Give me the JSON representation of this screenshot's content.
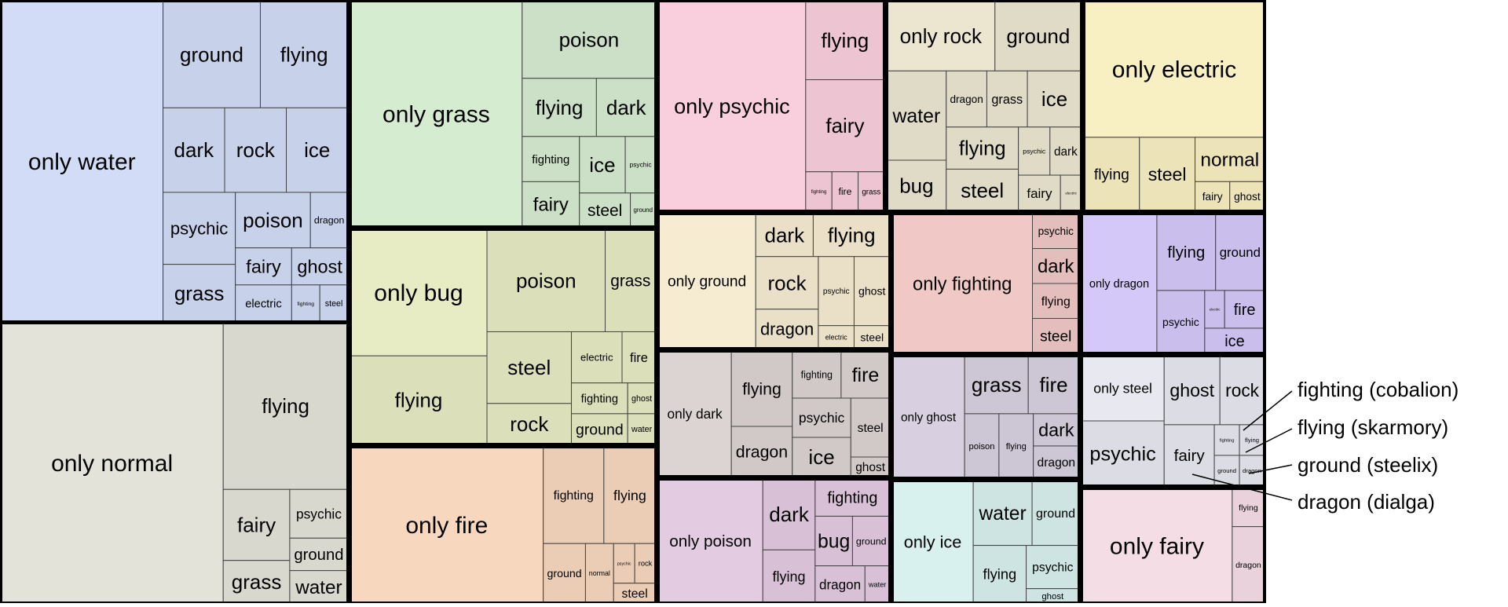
{
  "chart_data": {
    "type": "treemap",
    "title": "",
    "palette": {
      "water": "#d2dcf6",
      "normal": "#e3e3da",
      "grass": "#d6ecd0",
      "bug": "#e7ecc5",
      "fire": "#f7d8be",
      "psychic": "#f9cedd",
      "ground": "#f6ecd2",
      "dark": "#dcd4d2",
      "poison": "#e3cbe2",
      "rock": "#ece6d0",
      "fighting": "#f0c8c6",
      "ghost": "#d8d0e0",
      "ice": "#d8f0ee",
      "electric": "#f8efc2",
      "dragon": "#d4c8f8",
      "steel": "#e8e8f0",
      "fairy": "#f5dde6"
    },
    "groups": [
      {
        "name": "water",
        "label": "only water",
        "pure": 50,
        "secondary": [
          [
            "ground",
            10
          ],
          [
            "flying",
            9
          ],
          [
            "dark",
            5
          ],
          [
            "rock",
            5
          ],
          [
            "ice",
            5
          ],
          [
            "psychic",
            5
          ],
          [
            "grass",
            4
          ],
          [
            "poison",
            4
          ],
          [
            "dragon",
            2
          ],
          [
            "fairy",
            2
          ],
          [
            "electric",
            2
          ],
          [
            "ghost",
            2
          ],
          [
            "fighting",
            1
          ],
          [
            "steel",
            1
          ]
        ]
      },
      {
        "name": "normal",
        "label": "only normal",
        "pure": 66,
        "secondary": [
          [
            "flying",
            22
          ],
          [
            "fairy",
            5
          ],
          [
            "grass",
            3
          ],
          [
            "psychic",
            3
          ],
          [
            "ground",
            2
          ],
          [
            "water",
            2
          ]
        ]
      },
      {
        "name": "grass",
        "label": "only grass",
        "pure": 45,
        "secondary": [
          [
            "poison",
            12
          ],
          [
            "flying",
            5
          ],
          [
            "dark",
            4
          ],
          [
            "fighting",
            3
          ],
          [
            "fairy",
            3
          ],
          [
            "ice",
            3
          ],
          [
            "psychic",
            2
          ],
          [
            "steel",
            2
          ],
          [
            "ground",
            1
          ]
        ]
      },
      {
        "name": "bug",
        "label": "only bug",
        "pure": 20,
        "secondary": [
          [
            "flying",
            14
          ],
          [
            "poison",
            14
          ],
          [
            "grass",
            6
          ],
          [
            "steel",
            7
          ],
          [
            "rock",
            4
          ],
          [
            "electric",
            3
          ],
          [
            "fire",
            2
          ],
          [
            "fighting",
            2
          ],
          [
            "ground",
            2
          ],
          [
            "ghost",
            1
          ],
          [
            "water",
            1
          ]
        ]
      },
      {
        "name": "fire",
        "label": "only fire",
        "pure": 36,
        "secondary": [
          [
            "fighting",
            7
          ],
          [
            "flying",
            6
          ],
          [
            "ground",
            3
          ],
          [
            "normal",
            2
          ],
          [
            "psychic",
            1
          ],
          [
            "rock",
            1
          ],
          [
            "steel",
            1
          ]
        ]
      },
      {
        "name": "psychic",
        "label": "only psychic",
        "pure": 30,
        "secondary": [
          [
            "flying",
            6
          ],
          [
            "fairy",
            7
          ],
          [
            "fighting",
            1
          ],
          [
            "fire",
            1
          ],
          [
            "grass",
            1
          ]
        ]
      },
      {
        "name": "ground",
        "label": "only ground",
        "pure": 16,
        "secondary": [
          [
            "dark",
            3
          ],
          [
            "flying",
            4
          ],
          [
            "rock",
            4
          ],
          [
            "dragon",
            3
          ],
          [
            "psychic",
            3
          ],
          [
            "ghost",
            3
          ],
          [
            "electric",
            1
          ],
          [
            "steel",
            1
          ]
        ]
      },
      {
        "name": "dark",
        "label": "only dark",
        "pure": 12,
        "secondary": [
          [
            "flying",
            6
          ],
          [
            "dragon",
            4
          ],
          [
            "fighting",
            3
          ],
          [
            "fire",
            3
          ],
          [
            "psychic",
            3
          ],
          [
            "ice",
            3
          ],
          [
            "steel",
            3
          ],
          [
            "ghost",
            1
          ]
        ]
      },
      {
        "name": "poison",
        "label": "only poison",
        "pure": 14,
        "secondary": [
          [
            "dark",
            4
          ],
          [
            "flying",
            3
          ],
          [
            "fighting",
            3
          ],
          [
            "bug",
            2
          ],
          [
            "ground",
            2
          ],
          [
            "dragon",
            2
          ],
          [
            "water",
            1
          ]
        ]
      },
      {
        "name": "rock",
        "label": "only rock",
        "pure": 10,
        "secondary": [
          [
            "ground",
            8
          ],
          [
            "water",
            7
          ],
          [
            "bug",
            4
          ],
          [
            "dragon",
            3
          ],
          [
            "grass",
            3
          ],
          [
            "ice",
            4
          ],
          [
            "flying",
            4
          ],
          [
            "steel",
            4
          ],
          [
            "psychic",
            2
          ],
          [
            "dark",
            2
          ],
          [
            "fairy",
            2
          ],
          [
            "electric",
            1
          ]
        ]
      },
      {
        "name": "fighting",
        "label": "only fighting",
        "pure": 24,
        "secondary": [
          [
            "psychic",
            2
          ],
          [
            "dark",
            2
          ],
          [
            "flying",
            2
          ],
          [
            "steel",
            2
          ]
        ]
      },
      {
        "name": "ghost",
        "label": "only ghost",
        "pure": 12,
        "secondary": [
          [
            "grass",
            5
          ],
          [
            "fire",
            4
          ],
          [
            "poison",
            3
          ],
          [
            "flying",
            3
          ],
          [
            "dark",
            2
          ],
          [
            "dragon",
            2
          ]
        ]
      },
      {
        "name": "ice",
        "label": "only ice",
        "pure": 13,
        "secondary": [
          [
            "water",
            5
          ],
          [
            "ground",
            4
          ],
          [
            "flying",
            4
          ],
          [
            "psychic",
            3
          ],
          [
            "ghost",
            1
          ]
        ]
      },
      {
        "name": "electric",
        "label": "only electric",
        "pure": 24,
        "secondary": [
          [
            "flying",
            4
          ],
          [
            "steel",
            4
          ],
          [
            "normal",
            3
          ],
          [
            "fairy",
            1
          ],
          [
            "ghost",
            1
          ]
        ]
      },
      {
        "name": "dragon",
        "label": "only dragon",
        "pure": 14,
        "secondary": [
          [
            "flying",
            6
          ],
          [
            "ground",
            5
          ],
          [
            "psychic",
            4
          ],
          [
            "electric",
            1
          ],
          [
            "fire",
            2
          ],
          [
            "ice",
            2
          ]
        ]
      },
      {
        "name": "steel",
        "label": "only steel",
        "pure": 7,
        "secondary": [
          [
            "psychic",
            7
          ],
          [
            "ghost",
            5
          ],
          [
            "rock",
            4
          ],
          [
            "fairy",
            4
          ],
          [
            "fighting",
            1
          ],
          [
            "flying",
            1
          ],
          [
            "ground",
            1
          ],
          [
            "dragon",
            1
          ]
        ]
      },
      {
        "name": "fairy",
        "label": "only fairy",
        "pure": 14,
        "secondary": [
          [
            "flying",
            1
          ],
          [
            "dragon",
            2
          ]
        ]
      }
    ],
    "annotations": [
      {
        "label": "fighting (cobalion)"
      },
      {
        "label": "flying (skarmory)"
      },
      {
        "label": "ground (steelix)"
      },
      {
        "label": "dragon (dialga)"
      }
    ]
  }
}
